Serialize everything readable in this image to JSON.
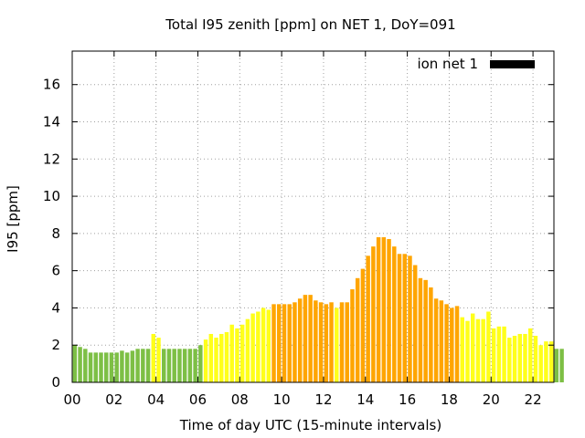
{
  "chart_data": {
    "type": "bar",
    "title": "Total I95 zenith [ppm] on NET 1, DoY=091",
    "xlabel": "Time of day UTC (15-minute intervals)",
    "ylabel": "I95 [ppm]",
    "xlim": [
      0,
      23.0
    ],
    "ylim": [
      0,
      17.8
    ],
    "grid": true,
    "x_ticks": [
      "00",
      "02",
      "04",
      "06",
      "08",
      "10",
      "12",
      "14",
      "16",
      "18",
      "20",
      "22"
    ],
    "x_tick_values": [
      0,
      2,
      4,
      6,
      8,
      10,
      12,
      14,
      16,
      18,
      20,
      22
    ],
    "y_ticks": [
      "0",
      "2",
      "4",
      "6",
      "8",
      "10",
      "12",
      "14",
      "16"
    ],
    "y_tick_values": [
      0,
      2,
      4,
      6,
      8,
      10,
      12,
      14,
      16
    ],
    "interval_hours": 0.25,
    "legend": {
      "label": "ion net 1",
      "color": "#000000",
      "position": "top-right"
    },
    "colors": {
      "green": "#7dbf45",
      "yellow": "#ffff1a",
      "orange": "#ffa500"
    },
    "series": [
      {
        "name": "ion net 1",
        "values": [
          2.0,
          1.9,
          1.8,
          1.6,
          1.6,
          1.6,
          1.6,
          1.6,
          1.6,
          1.7,
          1.6,
          1.7,
          1.8,
          1.8,
          1.8,
          2.6,
          2.4,
          1.8,
          1.8,
          1.8,
          1.8,
          1.8,
          1.8,
          1.8,
          2.0,
          2.3,
          2.6,
          2.4,
          2.6,
          2.7,
          3.1,
          2.9,
          3.1,
          3.4,
          3.7,
          3.8,
          4.0,
          3.9,
          4.2,
          4.2,
          4.2,
          4.2,
          4.3,
          4.5,
          4.7,
          4.7,
          4.4,
          4.3,
          4.2,
          4.3,
          4.0,
          4.3,
          4.3,
          5.0,
          5.6,
          6.1,
          6.8,
          7.3,
          7.8,
          7.8,
          7.7,
          7.3,
          6.9,
          6.9,
          6.8,
          6.3,
          5.6,
          5.5,
          5.1,
          4.5,
          4.4,
          4.2,
          4.0,
          4.1,
          3.5,
          3.3,
          3.7,
          3.4,
          3.4,
          3.8,
          2.9,
          3.0,
          3.0,
          2.4,
          2.5,
          2.6,
          2.6,
          2.9,
          2.5,
          2.0,
          2.2,
          2.2,
          1.8,
          1.8
        ],
        "bar_colors": [
          "green",
          "green",
          "green",
          "green",
          "green",
          "green",
          "green",
          "green",
          "green",
          "green",
          "green",
          "green",
          "green",
          "green",
          "green",
          "yellow",
          "yellow",
          "green",
          "green",
          "green",
          "green",
          "green",
          "green",
          "green",
          "green",
          "yellow",
          "yellow",
          "yellow",
          "yellow",
          "yellow",
          "yellow",
          "yellow",
          "yellow",
          "yellow",
          "yellow",
          "yellow",
          "yellow",
          "yellow",
          "orange",
          "orange",
          "orange",
          "orange",
          "orange",
          "orange",
          "orange",
          "orange",
          "orange",
          "orange",
          "orange",
          "orange",
          "yellow",
          "orange",
          "orange",
          "orange",
          "orange",
          "orange",
          "orange",
          "orange",
          "orange",
          "orange",
          "orange",
          "orange",
          "orange",
          "orange",
          "orange",
          "orange",
          "orange",
          "orange",
          "orange",
          "orange",
          "orange",
          "orange",
          "orange",
          "orange",
          "yellow",
          "yellow",
          "yellow",
          "yellow",
          "yellow",
          "yellow",
          "yellow",
          "yellow",
          "yellow",
          "yellow",
          "yellow",
          "yellow",
          "yellow",
          "yellow",
          "yellow",
          "yellow",
          "yellow",
          "yellow",
          "green",
          "green"
        ]
      }
    ]
  }
}
